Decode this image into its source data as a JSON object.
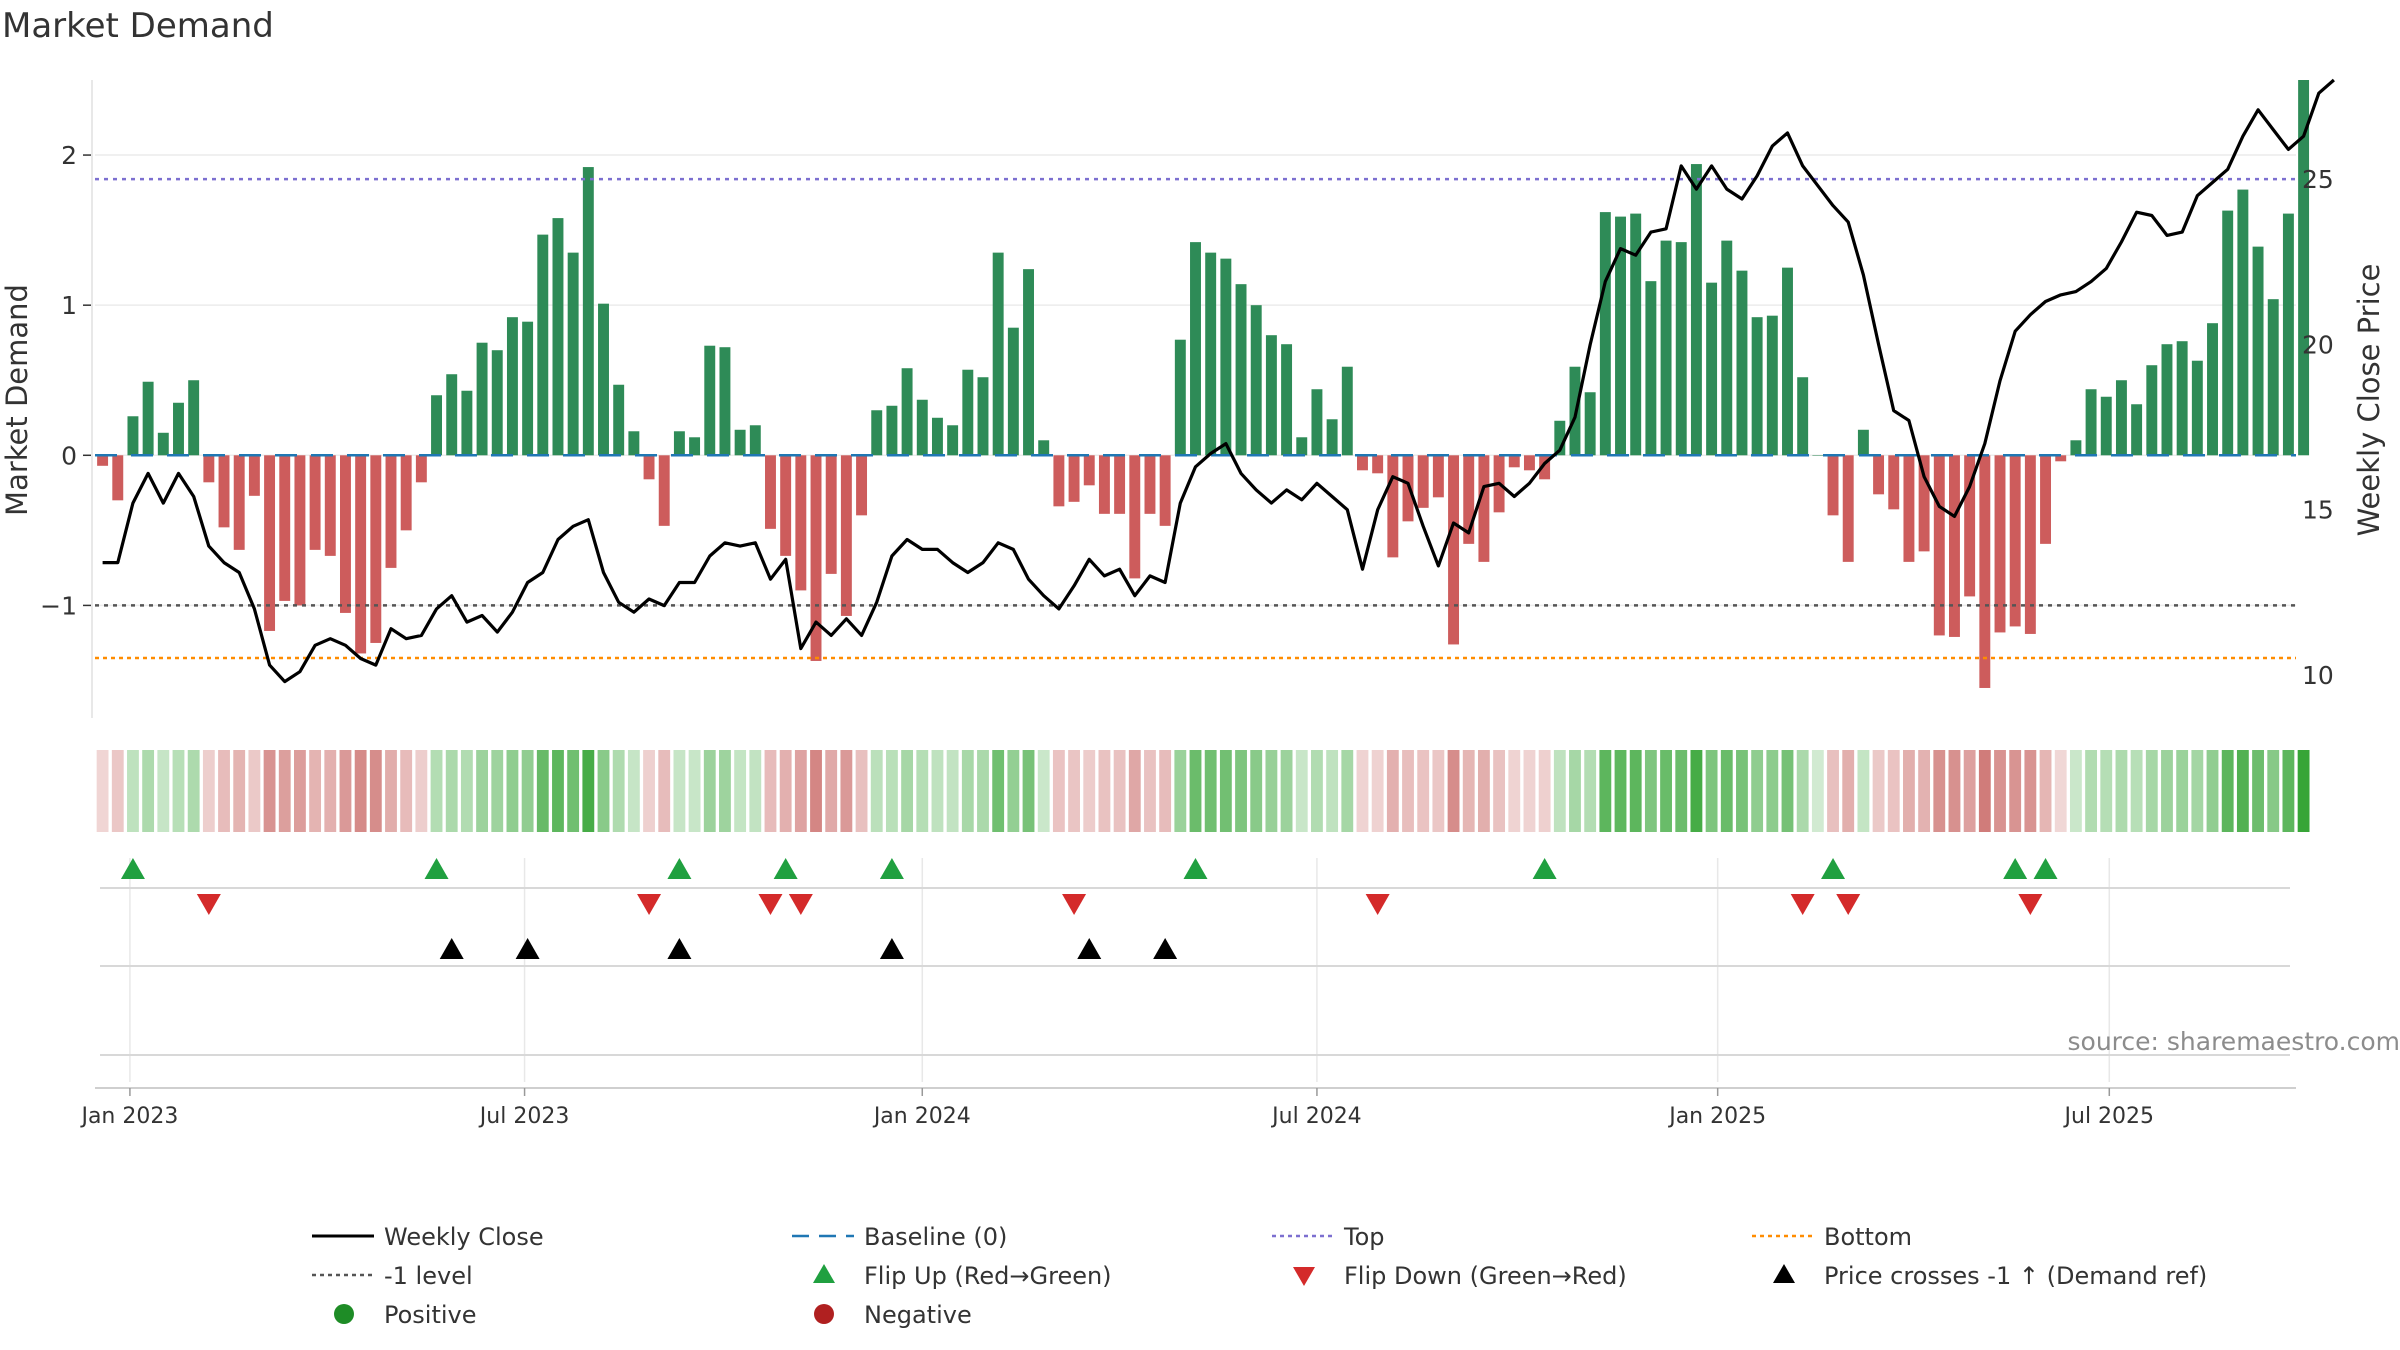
{
  "chart_data": {
    "type": "bar",
    "title": "Market Demand",
    "ylabel": "Market Demand",
    "ylabel_right": "Weekly Close Price",
    "ylim": [
      -1.75,
      2.5
    ],
    "ylim_right": [
      8.7,
      28.0
    ],
    "yticks": [
      -1,
      0,
      1,
      2
    ],
    "yticks_right": [
      10,
      15,
      20,
      25
    ],
    "xlim": [
      -0.5,
      144.5
    ],
    "xticks": [
      {
        "label": "Jan 2023",
        "week": 1.8
      },
      {
        "label": "Jul 2023",
        "week": 27.8
      },
      {
        "label": "Jan 2024",
        "week": 54.0
      },
      {
        "label": "Jul 2024",
        "week": 80.0
      },
      {
        "label": "Jan 2025",
        "week": 106.4
      },
      {
        "label": "Jul 2025",
        "week": 132.2
      }
    ],
    "reference_lines": {
      "top": 1.84,
      "minus_one": -1.0,
      "bottom": -1.35,
      "baseline": 0
    },
    "demand": [
      -0.07,
      -0.3,
      0.26,
      0.49,
      0.15,
      0.35,
      0.5,
      -0.18,
      -0.48,
      -0.63,
      -0.27,
      -1.17,
      -0.97,
      -1.0,
      -0.63,
      -0.67,
      -1.05,
      -1.32,
      -1.25,
      -0.75,
      -0.5,
      -0.18,
      0.4,
      0.54,
      0.43,
      0.75,
      0.7,
      0.92,
      0.89,
      1.47,
      1.58,
      1.35,
      1.92,
      1.01,
      0.47,
      0.16,
      -0.16,
      -0.47,
      0.16,
      0.12,
      0.73,
      0.72,
      0.17,
      0.2,
      -0.49,
      -0.67,
      -0.9,
      -1.37,
      -0.79,
      -1.07,
      -0.4,
      0.3,
      0.33,
      0.58,
      0.37,
      0.25,
      0.2,
      0.57,
      0.52,
      1.35,
      0.85,
      1.24,
      0.1,
      -0.34,
      -0.31,
      -0.2,
      -0.39,
      -0.39,
      -0.82,
      -0.39,
      -0.47,
      0.77,
      1.42,
      1.35,
      1.31,
      1.14,
      1.0,
      0.8,
      0.74,
      0.12,
      0.44,
      0.24,
      0.59,
      -0.1,
      -0.12,
      -0.68,
      -0.44,
      -0.35,
      -0.28,
      -1.26,
      -0.59,
      -0.71,
      -0.38,
      -0.08,
      -0.1,
      -0.16,
      0.23,
      0.59,
      0.42,
      1.62,
      1.59,
      1.61,
      1.16,
      1.43,
      1.42,
      1.94,
      1.15,
      1.43,
      1.23,
      0.92,
      0.93,
      1.25,
      0.52,
      0,
      -0.4,
      -0.71,
      0.17,
      -0.26,
      -0.36,
      -0.71,
      -0.64,
      -1.2,
      -1.21,
      -0.94,
      -1.55,
      -1.18,
      -1.14,
      -1.19,
      -0.59,
      -0.04,
      0.1,
      0.44,
      0.39,
      0.5,
      0.34,
      0.6,
      0.74,
      0.76,
      0.63,
      0.88,
      1.63,
      1.77,
      1.39,
      1.04,
      1.61,
      2.5
    ],
    "weekly_close": [
      13.4,
      13.4,
      15.2,
      16.1,
      15.2,
      16.1,
      15.4,
      13.9,
      13.4,
      13.1,
      12.0,
      10.3,
      9.8,
      10.1,
      10.9,
      11.1,
      10.9,
      10.5,
      10.3,
      11.4,
      11.1,
      11.2,
      12.0,
      12.4,
      11.6,
      11.8,
      11.3,
      11.9,
      12.8,
      13.1,
      14.1,
      14.5,
      14.7,
      13.1,
      12.2,
      11.9,
      12.3,
      12.1,
      12.8,
      12.8,
      13.6,
      14.0,
      13.9,
      14.0,
      12.9,
      13.5,
      10.8,
      11.6,
      11.2,
      11.7,
      11.2,
      12.2,
      13.6,
      14.1,
      13.8,
      13.8,
      13.4,
      13.1,
      13.4,
      14.0,
      13.8,
      12.9,
      12.4,
      12.0,
      12.7,
      13.5,
      13.0,
      13.2,
      12.4,
      13.0,
      12.8,
      15.2,
      16.3,
      16.7,
      17.0,
      16.1,
      15.6,
      15.2,
      15.6,
      15.3,
      15.8,
      15.4,
      15.0,
      13.2,
      15.0,
      16.0,
      15.8,
      14.5,
      13.3,
      14.6,
      14.3,
      15.7,
      15.8,
      15.4,
      15.8,
      16.4,
      16.8,
      17.8,
      20.0,
      21.9,
      22.9,
      22.7,
      23.4,
      23.5,
      25.4,
      24.7,
      25.4,
      24.7,
      24.4,
      25.1,
      26.0,
      26.4,
      25.4,
      24.8,
      24.2,
      23.7,
      22.1,
      20.0,
      18.0,
      17.7,
      16.0,
      15.1,
      14.8,
      15.7,
      17.0,
      18.9,
      20.4,
      20.9,
      21.3,
      21.5,
      21.6,
      21.9,
      22.3,
      23.1,
      24.0,
      23.9,
      23.3,
      23.4,
      24.5,
      24.9,
      25.3,
      26.3,
      27.1,
      26.5,
      25.9,
      26.3,
      27.6,
      28.0
    ],
    "flips_up": [
      2,
      22,
      38,
      45,
      52,
      72,
      95,
      114,
      126,
      128
    ],
    "flips_down": [
      7,
      36,
      44,
      46,
      64,
      84,
      112,
      115,
      127
    ],
    "price_crosses": [
      23,
      28,
      38,
      52,
      65,
      70
    ],
    "legend": [
      {
        "key": "weekly_close",
        "label": "Weekly Close",
        "color": "#000000"
      },
      {
        "key": "baseline",
        "label": "Baseline (0)",
        "color": "#1f77b4"
      },
      {
        "key": "top",
        "label": "Top",
        "color": "#7c6fd0"
      },
      {
        "key": "bottom",
        "label": "Bottom",
        "color": "#ff8c00"
      },
      {
        "key": "minus_one",
        "label": "-1 level",
        "color": "#555555"
      },
      {
        "key": "flip_up",
        "label": "Flip Up (Red→Green)",
        "color": "#20a040"
      },
      {
        "key": "flip_down",
        "label": "Flip Down (Green→Red)",
        "color": "#d42a2a"
      },
      {
        "key": "price_cross",
        "label": "Price crosses -1 ↑ (Demand ref)",
        "color": "#000000"
      },
      {
        "key": "positive",
        "label": "Positive",
        "color": "#1e8c26"
      },
      {
        "key": "negative",
        "label": "Negative",
        "color": "#b02020"
      }
    ],
    "source": "source: sharemaestro.com",
    "colors": {
      "positive_bar": "#2e8b57",
      "negative_bar": "#cd5c5c",
      "heat_positive": "#2ca02c",
      "heat_negative": "#c0504d"
    }
  }
}
